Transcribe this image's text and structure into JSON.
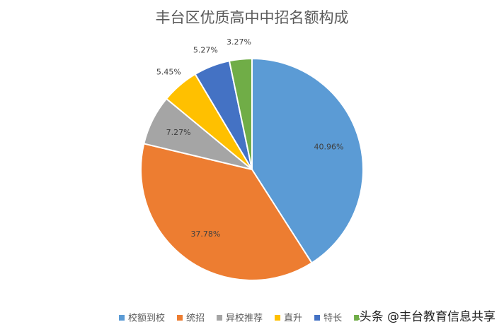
{
  "chart_data": {
    "type": "pie",
    "title": "丰台区优质高中中招名额构成",
    "categories": [
      "校额到校",
      "统招",
      "异校推荐",
      "直升",
      "特长",
      null
    ],
    "values": [
      40.96,
      37.78,
      7.27,
      5.45,
      5.27,
      3.27
    ],
    "value_labels": [
      "40.96%",
      "37.78%",
      "7.27%",
      "5.45%",
      "5.27%",
      "3.27%"
    ],
    "colors": [
      "#5b9bd5",
      "#ed7d31",
      "#a5a5a5",
      "#ffc000",
      "#4472c4",
      "#70ad47"
    ],
    "legend": "bottom",
    "watermark": "头条 @丰台教育信息共享"
  }
}
